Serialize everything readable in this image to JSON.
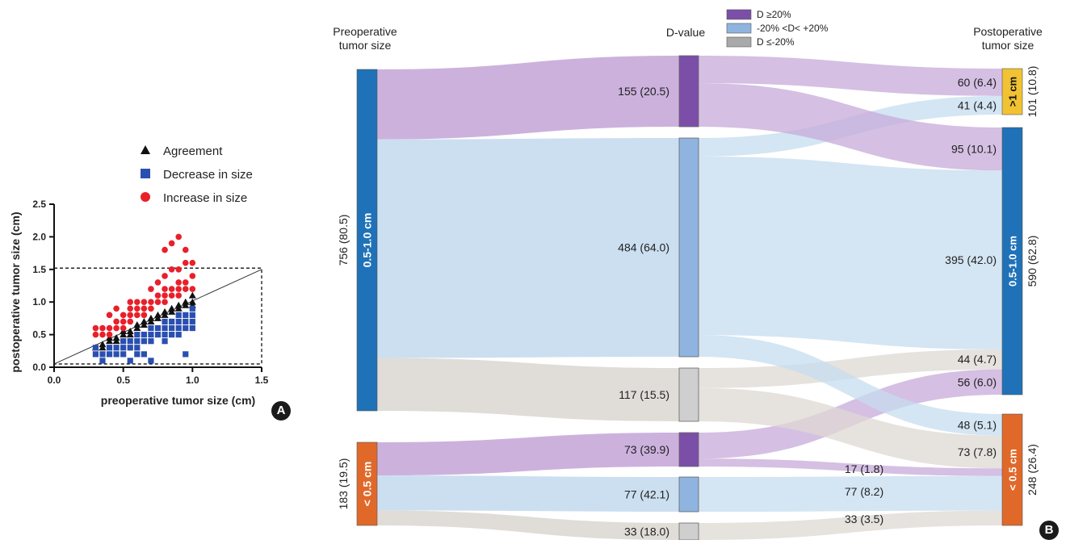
{
  "chart_data": [
    {
      "type": "scatter",
      "panel_label": "A",
      "xlabel": "preoperative tumor size (cm)",
      "ylabel": "postoperative tumor size (cm)",
      "xlim": [
        0,
        1.5
      ],
      "ylim": [
        0,
        2.5
      ],
      "xticks": [
        "0.0",
        "0.5",
        "1.0",
        "1.5"
      ],
      "yticks": [
        "0.0",
        "0.5",
        "1.0",
        "1.5",
        "2.0",
        "2.5"
      ],
      "legend": "top",
      "colors": {
        "agreement": "#111111",
        "decrease": "#2a4fb0",
        "increase": "#e8202a"
      },
      "reference_box": {
        "x": [
          0,
          1.5
        ],
        "y": [
          0.05,
          1.52
        ]
      },
      "identity_line": {
        "x": [
          0,
          1.5
        ],
        "y": [
          0.05,
          1.5
        ]
      },
      "series": [
        {
          "name": "Agreement",
          "marker": "triangle",
          "points": [
            [
              0.3,
              0.3
            ],
            [
              0.35,
              0.35
            ],
            [
              0.4,
              0.4
            ],
            [
              0.45,
              0.45
            ],
            [
              0.5,
              0.5
            ],
            [
              0.55,
              0.55
            ],
            [
              0.6,
              0.6
            ],
            [
              0.65,
              0.65
            ],
            [
              0.7,
              0.7
            ],
            [
              0.75,
              0.75
            ],
            [
              0.8,
              0.8
            ],
            [
              0.85,
              0.85
            ],
            [
              0.9,
              0.9
            ],
            [
              0.95,
              0.95
            ],
            [
              1.0,
              1.0
            ],
            [
              0.4,
              0.45
            ],
            [
              0.5,
              0.55
            ],
            [
              0.6,
              0.65
            ],
            [
              0.7,
              0.75
            ],
            [
              0.8,
              0.85
            ],
            [
              0.9,
              0.95
            ],
            [
              1.0,
              1.1
            ],
            [
              0.65,
              0.7
            ],
            [
              0.75,
              0.8
            ],
            [
              0.85,
              0.9
            ],
            [
              0.95,
              1.0
            ],
            [
              0.55,
              0.5
            ],
            [
              0.45,
              0.4
            ],
            [
              0.35,
              0.3
            ],
            [
              1.0,
              0.95
            ]
          ]
        },
        {
          "name": "Decrease in size",
          "marker": "square",
          "points": [
            [
              0.3,
              0.2
            ],
            [
              0.35,
              0.2
            ],
            [
              0.35,
              0.1
            ],
            [
              0.4,
              0.3
            ],
            [
              0.4,
              0.2
            ],
            [
              0.45,
              0.3
            ],
            [
              0.45,
              0.2
            ],
            [
              0.5,
              0.4
            ],
            [
              0.5,
              0.3
            ],
            [
              0.5,
              0.2
            ],
            [
              0.55,
              0.4
            ],
            [
              0.55,
              0.3
            ],
            [
              0.6,
              0.5
            ],
            [
              0.6,
              0.4
            ],
            [
              0.6,
              0.3
            ],
            [
              0.65,
              0.5
            ],
            [
              0.65,
              0.4
            ],
            [
              0.65,
              0.2
            ],
            [
              0.7,
              0.6
            ],
            [
              0.7,
              0.5
            ],
            [
              0.7,
              0.4
            ],
            [
              0.75,
              0.6
            ],
            [
              0.75,
              0.5
            ],
            [
              0.8,
              0.7
            ],
            [
              0.8,
              0.6
            ],
            [
              0.8,
              0.5
            ],
            [
              0.8,
              0.4
            ],
            [
              0.85,
              0.7
            ],
            [
              0.85,
              0.6
            ],
            [
              0.85,
              0.5
            ],
            [
              0.9,
              0.8
            ],
            [
              0.9,
              0.7
            ],
            [
              0.9,
              0.6
            ],
            [
              0.9,
              0.5
            ],
            [
              0.95,
              0.8
            ],
            [
              0.95,
              0.7
            ],
            [
              0.95,
              0.6
            ],
            [
              1.0,
              0.9
            ],
            [
              1.0,
              0.8
            ],
            [
              1.0,
              0.7
            ],
            [
              1.0,
              0.6
            ],
            [
              0.95,
              0.2
            ],
            [
              0.7,
              0.1
            ],
            [
              0.55,
              0.1
            ],
            [
              0.3,
              0.3
            ],
            [
              0.6,
              0.2
            ]
          ]
        },
        {
          "name": "Increase in size",
          "marker": "circle",
          "points": [
            [
              0.3,
              0.5
            ],
            [
              0.3,
              0.6
            ],
            [
              0.35,
              0.5
            ],
            [
              0.35,
              0.6
            ],
            [
              0.4,
              0.5
            ],
            [
              0.4,
              0.6
            ],
            [
              0.45,
              0.6
            ],
            [
              0.45,
              0.7
            ],
            [
              0.5,
              0.6
            ],
            [
              0.5,
              0.7
            ],
            [
              0.5,
              0.8
            ],
            [
              0.55,
              0.7
            ],
            [
              0.55,
              0.8
            ],
            [
              0.55,
              0.9
            ],
            [
              0.6,
              0.8
            ],
            [
              0.6,
              0.9
            ],
            [
              0.65,
              0.8
            ],
            [
              0.65,
              0.9
            ],
            [
              0.65,
              1.0
            ],
            [
              0.7,
              0.9
            ],
            [
              0.7,
              1.0
            ],
            [
              0.7,
              1.2
            ],
            [
              0.75,
              1.0
            ],
            [
              0.75,
              1.1
            ],
            [
              0.75,
              1.3
            ],
            [
              0.8,
              1.0
            ],
            [
              0.8,
              1.1
            ],
            [
              0.8,
              1.2
            ],
            [
              0.8,
              1.4
            ],
            [
              0.8,
              1.8
            ],
            [
              0.85,
              1.1
            ],
            [
              0.85,
              1.2
            ],
            [
              0.85,
              1.5
            ],
            [
              0.85,
              1.9
            ],
            [
              0.9,
              1.1
            ],
            [
              0.9,
              1.2
            ],
            [
              0.9,
              1.3
            ],
            [
              0.9,
              1.5
            ],
            [
              0.95,
              1.2
            ],
            [
              0.95,
              1.3
            ],
            [
              0.95,
              1.6
            ],
            [
              0.95,
              1.8
            ],
            [
              1.0,
              1.2
            ],
            [
              1.0,
              1.4
            ],
            [
              1.0,
              1.6
            ],
            [
              0.9,
              2.0
            ],
            [
              0.4,
              0.8
            ],
            [
              0.45,
              0.9
            ],
            [
              0.55,
              1.0
            ],
            [
              0.6,
              1.0
            ]
          ]
        }
      ]
    },
    {
      "type": "sankey",
      "panel_label": "B",
      "headers": {
        "left": [
          "Preoperative",
          "tumor size"
        ],
        "middle": "D-value",
        "right": [
          "Postoperative",
          "tumor size"
        ]
      },
      "legend": "top-center",
      "legend_entries": [
        {
          "label": "D ≥20%",
          "color": "#7b4fa8"
        },
        {
          "label": "-20% <D< +20%",
          "color": "#8fb4df"
        },
        {
          "label": "D ≤-20%",
          "color": "#a9a9a9"
        }
      ],
      "link_colors": {
        "up": "#c7a9d9",
        "same": "#c5dcef",
        "down": "#ddd8d3"
      },
      "node_colors": {
        "up": "#7b4fa8",
        "same": "#8fb4df",
        "down": "#cfcfcf",
        "mid_size": "#1f72b8",
        "small": "#e0692a",
        "large": "#f1c232"
      },
      "left_nodes": [
        {
          "id": "pre_mid",
          "label": "0.5-1.0 cm",
          "count": "756 (80.5)",
          "value": 756,
          "color_key": "mid_size"
        },
        {
          "id": "pre_small",
          "label": "< 0.5 cm",
          "count": "183 (19.5)",
          "value": 183,
          "color_key": "small"
        }
      ],
      "middle_nodes": [
        {
          "id": "mid_up",
          "source": "pre_mid",
          "value": 155,
          "label": "155 (20.5)",
          "color_key": "up"
        },
        {
          "id": "mid_same",
          "source": "pre_mid",
          "value": 484,
          "label": "484 (64.0)",
          "color_key": "same"
        },
        {
          "id": "mid_down",
          "source": "pre_mid",
          "value": 117,
          "label": "117 (15.5)",
          "color_key": "down"
        },
        {
          "id": "small_up",
          "source": "pre_small",
          "value": 73,
          "label": "73 (39.9)",
          "color_key": "up"
        },
        {
          "id": "small_same",
          "source": "pre_small",
          "value": 77,
          "label": "77 (42.1)",
          "color_key": "same"
        },
        {
          "id": "small_down",
          "source": "pre_small",
          "value": 33,
          "label": "33 (18.0)",
          "color_key": "down"
        }
      ],
      "right_nodes": [
        {
          "id": "post_large",
          "label": ">1 cm",
          "count": "101 (10.8)",
          "value": 101,
          "color_key": "large"
        },
        {
          "id": "post_mid",
          "label": "0.5-1.0 cm",
          "count": "590 (62.8)",
          "value": 590,
          "color_key": "mid_size"
        },
        {
          "id": "post_small",
          "label": "< 0.5 cm",
          "count": "248 (26.4)",
          "value": 248,
          "color_key": "small"
        }
      ],
      "flows": [
        {
          "from": "mid_up",
          "to": "post_large",
          "value": 60,
          "label": "60 (6.4)",
          "kind": "up"
        },
        {
          "from": "mid_same",
          "to": "post_large",
          "value": 41,
          "label": "41 (4.4)",
          "kind": "same"
        },
        {
          "from": "mid_up",
          "to": "post_mid",
          "value": 95,
          "label": "95 (10.1)",
          "kind": "up"
        },
        {
          "from": "mid_same",
          "to": "post_mid",
          "value": 395,
          "label": "395 (42.0)",
          "kind": "same"
        },
        {
          "from": "mid_down",
          "to": "post_mid",
          "value": 44,
          "label": "44 (4.7)",
          "kind": "down"
        },
        {
          "from": "small_up",
          "to": "post_mid",
          "value": 56,
          "label": "56 (6.0)",
          "kind": "up"
        },
        {
          "from": "mid_same",
          "to": "post_small",
          "value": 48,
          "label": "48 (5.1)",
          "kind": "same"
        },
        {
          "from": "mid_down",
          "to": "post_small",
          "value": 73,
          "label": "73 (7.8)",
          "kind": "down"
        },
        {
          "from": "small_up",
          "to": "post_small",
          "value": 17,
          "label": "17 (1.8)",
          "kind": "up"
        },
        {
          "from": "small_same",
          "to": "post_small",
          "value": 77,
          "label": "77 (8.2)",
          "kind": "same"
        },
        {
          "from": "small_down",
          "to": "post_small",
          "value": 33,
          "label": "33 (3.5)",
          "kind": "down"
        }
      ]
    }
  ]
}
